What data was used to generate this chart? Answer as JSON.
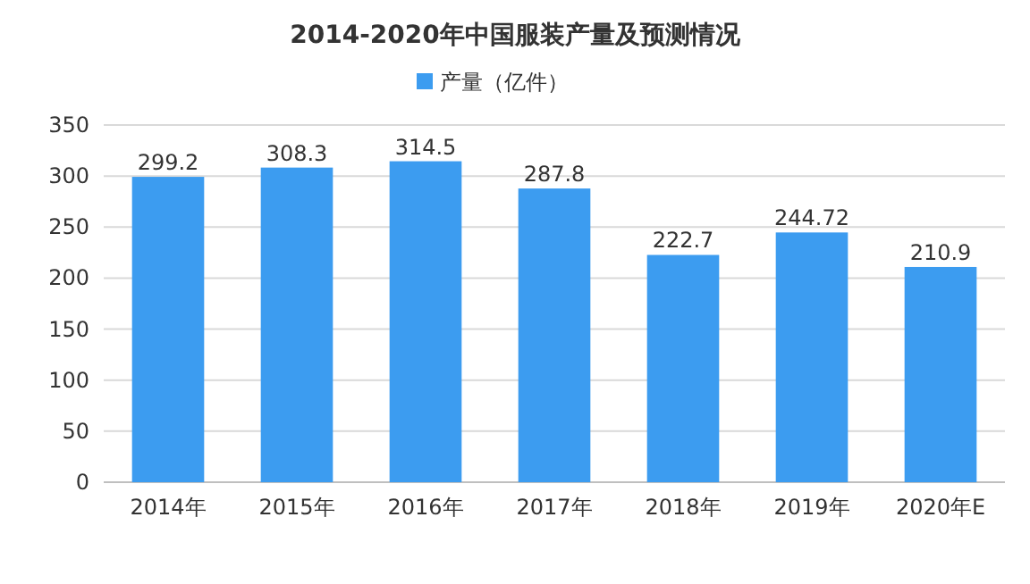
{
  "chart_data": {
    "type": "bar",
    "title": "2014-2020年中国服装产量及预测情况",
    "categories": [
      "2014年",
      "2015年",
      "2016年",
      "2017年",
      "2018年",
      "2019年",
      "2020年E"
    ],
    "series": [
      {
        "name": "产量（亿件）",
        "color": "#3c9cf0",
        "values": [
          299.2,
          308.3,
          314.5,
          287.8,
          222.7,
          244.72,
          210.9
        ]
      }
    ],
    "ylim": [
      0,
      350
    ],
    "yticks": [
      0,
      50,
      100,
      150,
      200,
      250,
      300,
      350
    ],
    "grid": "y",
    "legend": "top",
    "data_labels": true
  }
}
